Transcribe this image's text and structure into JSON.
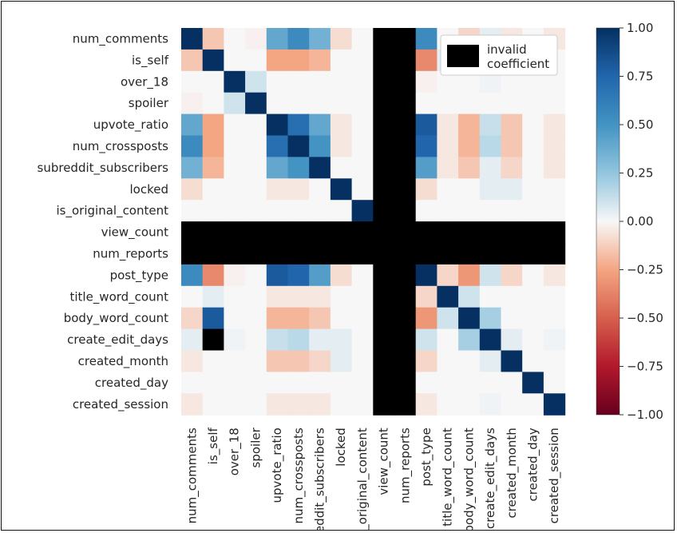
{
  "chart_data": {
    "type": "heatmap",
    "title": "",
    "xlabel": "",
    "ylabel": "",
    "row_labels": [
      "num_comments",
      "is_self",
      "over_18",
      "spoiler",
      "upvote_ratio",
      "num_crossposts",
      "subreddit_subscribers",
      "locked",
      "is_original_content",
      "view_count",
      "num_reports",
      "post_type",
      "title_word_count",
      "body_word_count",
      "create_edit_days",
      "created_month",
      "created_day",
      "created_session"
    ],
    "col_labels": [
      "num_comments",
      "is_self",
      "over_18",
      "spoiler",
      "upvote_ratio",
      "num_crossposts",
      "subreddit_subscribers",
      "locked",
      "is_original_content",
      "view_count",
      "num_reports",
      "post_type",
      "title_word_count",
      "body_word_count",
      "create_edit_days",
      "created_month",
      "created_day",
      "created_session"
    ],
    "values": [
      [
        1,
        -0.15,
        0,
        -0.02,
        0.4,
        0.55,
        0.35,
        -0.08,
        0,
        null,
        null,
        0.55,
        0,
        -0.1,
        0.05,
        -0.05,
        0,
        -0.05
      ],
      [
        -0.15,
        1,
        0,
        0,
        -0.25,
        -0.25,
        -0.2,
        0,
        0,
        null,
        null,
        -0.35,
        0.05,
        0.8,
        null,
        0,
        0,
        0
      ],
      [
        0,
        0,
        1,
        0.1,
        0,
        0,
        0,
        0,
        0,
        null,
        null,
        -0.02,
        0,
        0,
        0.02,
        0,
        0,
        0
      ],
      [
        -0.02,
        0,
        0.1,
        1,
        0,
        0,
        0,
        0,
        0,
        null,
        null,
        0,
        0,
        0,
        0,
        0,
        0,
        0
      ],
      [
        0.4,
        -0.25,
        0,
        0,
        1,
        0.7,
        0.4,
        -0.05,
        0,
        null,
        null,
        0.8,
        -0.05,
        -0.2,
        0.12,
        -0.15,
        0,
        -0.05
      ],
      [
        0.55,
        -0.25,
        0,
        0,
        0.7,
        1,
        0.5,
        -0.05,
        0,
        null,
        null,
        0.75,
        -0.05,
        -0.2,
        0.15,
        -0.15,
        0,
        -0.05
      ],
      [
        0.35,
        -0.2,
        0,
        0,
        0.4,
        0.5,
        1,
        0,
        0,
        null,
        null,
        0.45,
        -0.05,
        -0.15,
        0.05,
        -0.1,
        0,
        -0.05
      ],
      [
        -0.08,
        0,
        0,
        0,
        -0.05,
        -0.05,
        0,
        1,
        0,
        null,
        null,
        -0.08,
        0,
        0,
        0.05,
        0.05,
        0,
        0
      ],
      [
        0,
        0,
        0,
        0,
        0,
        0,
        0,
        0,
        1,
        null,
        null,
        0,
        0,
        0,
        0,
        0,
        0,
        0
      ],
      [
        null,
        null,
        null,
        null,
        null,
        null,
        null,
        null,
        null,
        null,
        null,
        null,
        null,
        null,
        null,
        null,
        null,
        null
      ],
      [
        null,
        null,
        null,
        null,
        null,
        null,
        null,
        null,
        null,
        null,
        null,
        null,
        null,
        null,
        null,
        null,
        null,
        null
      ],
      [
        0.55,
        -0.35,
        -0.02,
        0,
        0.8,
        0.75,
        0.45,
        -0.08,
        0,
        null,
        null,
        1,
        -0.1,
        -0.3,
        0.1,
        -0.1,
        0,
        -0.05
      ],
      [
        0,
        0.05,
        0,
        0,
        -0.05,
        -0.05,
        -0.05,
        0,
        0,
        null,
        null,
        -0.1,
        1,
        0.1,
        0,
        0,
        0,
        0
      ],
      [
        -0.1,
        0.8,
        0,
        0,
        -0.2,
        -0.2,
        -0.15,
        0,
        0,
        null,
        null,
        -0.3,
        0.1,
        1,
        0.2,
        0,
        0,
        0
      ],
      [
        0.05,
        null,
        0.02,
        0,
        0.12,
        0.15,
        0.05,
        0.05,
        0,
        null,
        null,
        0.1,
        0,
        0.2,
        1,
        0.05,
        0,
        0.02
      ],
      [
        -0.05,
        0,
        0,
        0,
        -0.15,
        -0.15,
        -0.1,
        0.05,
        0,
        null,
        null,
        -0.1,
        0,
        0,
        0.05,
        1,
        0,
        0
      ],
      [
        0,
        0,
        0,
        0,
        0,
        0,
        0,
        0,
        0,
        null,
        null,
        0,
        0,
        0,
        0,
        0,
        1,
        0
      ],
      [
        -0.05,
        0,
        0,
        0,
        -0.05,
        -0.05,
        -0.05,
        0,
        0,
        null,
        null,
        -0.05,
        0,
        0,
        0.02,
        0,
        0,
        1
      ]
    ],
    "colormap": "RdBu",
    "vmin": -1,
    "vmax": 1,
    "invalid_color": "#000000",
    "colorbar_ticks": [
      1,
      0.75,
      0.5,
      0.25,
      0,
      -0.25,
      -0.5,
      -0.75,
      -1
    ],
    "colorbar_tick_labels": [
      "1.00",
      "0.75",
      "0.50",
      "0.25",
      "0.00",
      "−0.25",
      "−0.50",
      "−0.75",
      "−1.00"
    ],
    "legend": {
      "label_line1": "invalid",
      "label_line2": "coefficient",
      "placement": "top-right",
      "swatch_color": "#000000"
    }
  }
}
